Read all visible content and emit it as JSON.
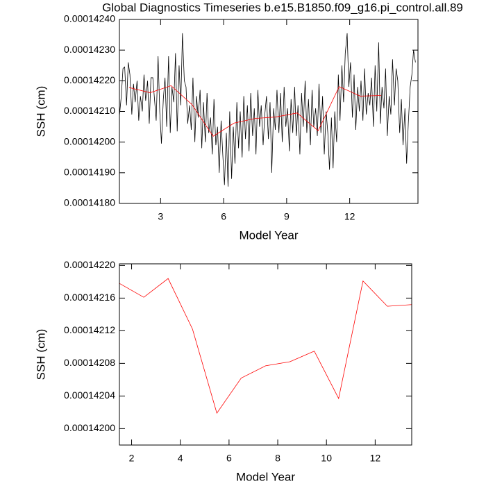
{
  "chart_data": [
    {
      "type": "line",
      "title": "Global Diagnostics Timeseries b.e15.B1850.f09_g16.pi_control.all.89",
      "x_label": "Model Year",
      "y_label": "SSH (cm)",
      "xlim": [
        1.04,
        15.25
      ],
      "xticks": [
        3,
        6,
        9,
        12
      ],
      "ylim": [
        0.0001418,
        0.0001424
      ],
      "yticks": [
        {
          "value": 0.0001418,
          "label": "0.00014180"
        },
        {
          "value": 0.0001419,
          "label": "0.00014190"
        },
        {
          "value": 0.000142,
          "label": "0.00014200"
        },
        {
          "value": 0.0001421,
          "label": "0.00014210"
        },
        {
          "value": 0.0001422,
          "label": "0.00014220"
        },
        {
          "value": 0.0001423,
          "label": "0.00014230"
        },
        {
          "value": 0.0001424,
          "label": "0.00014240"
        }
      ],
      "series": [
        {
          "color": "#000000",
          "x": [
            1.04,
            1.13,
            1.21,
            1.29,
            1.38,
            1.46,
            1.54,
            1.63,
            1.71,
            1.79,
            1.88,
            1.96,
            2.04,
            2.13,
            2.21,
            2.29,
            2.38,
            2.46,
            2.54,
            2.63,
            2.71,
            2.79,
            2.88,
            2.96,
            3.04,
            3.13,
            3.21,
            3.29,
            3.38,
            3.46,
            3.54,
            3.63,
            3.71,
            3.79,
            3.88,
            3.96,
            4.04,
            4.13,
            4.21,
            4.29,
            4.38,
            4.46,
            4.54,
            4.63,
            4.71,
            4.79,
            4.88,
            4.96,
            5.04,
            5.13,
            5.21,
            5.29,
            5.38,
            5.46,
            5.54,
            5.63,
            5.71,
            5.79,
            5.88,
            5.96,
            6.04,
            6.13,
            6.21,
            6.29,
            6.38,
            6.46,
            6.54,
            6.63,
            6.71,
            6.79,
            6.88,
            6.96,
            7.04,
            7.13,
            7.21,
            7.29,
            7.38,
            7.46,
            7.54,
            7.63,
            7.71,
            7.79,
            7.88,
            7.96,
            8.04,
            8.13,
            8.21,
            8.29,
            8.38,
            8.46,
            8.54,
            8.63,
            8.71,
            8.79,
            8.88,
            8.96,
            9.04,
            9.13,
            9.21,
            9.29,
            9.38,
            9.46,
            9.54,
            9.63,
            9.71,
            9.79,
            9.88,
            9.96,
            10.04,
            10.13,
            10.21,
            10.29,
            10.38,
            10.46,
            10.54,
            10.63,
            10.71,
            10.79,
            10.88,
            10.96,
            11.04,
            11.13,
            11.21,
            11.29,
            11.38,
            11.46,
            11.54,
            11.63,
            11.71,
            11.79,
            11.88,
            11.96,
            12.04,
            12.13,
            12.21,
            12.29,
            12.38,
            12.46,
            12.54,
            12.63,
            12.71,
            12.79,
            12.88,
            12.96,
            13.04,
            13.13,
            13.21,
            13.29,
            13.38,
            13.46,
            13.54,
            13.63,
            13.71,
            13.79,
            13.88,
            13.96,
            14.04,
            14.13,
            14.21,
            14.29,
            14.38,
            14.46,
            14.54,
            14.63,
            14.71,
            14.79,
            14.88,
            14.96,
            15.04,
            15.13
          ],
          "values": [
            0.000142085,
            0.00014215,
            0.00014224,
            0.000142245,
            0.00014212,
            0.00014226,
            0.00014222,
            0.00014209,
            0.00014219,
            0.00014213,
            0.0001422,
            0.00014207,
            0.00014215,
            0.0001421,
            0.00014222,
            0.000142135,
            0.0001422,
            0.00014206,
            0.00014221,
            0.00014221,
            0.00014214,
            0.00014207,
            0.00014228,
            0.0001421,
            0.000141995,
            0.00014214,
            0.00014221,
            0.00014205,
            0.00014228,
            0.00014203,
            0.00014218,
            0.00014213,
            0.00014229,
            0.000142035,
            0.00014225,
            0.00014212,
            0.000142355,
            0.0001422,
            0.00014218,
            0.00014206,
            0.00014212,
            0.00014204,
            0.00014221,
            0.000142,
            0.00014215,
            0.00014208,
            0.00014217,
            0.00014198,
            0.00014213,
            0.000142,
            0.00014216,
            0.00014203,
            0.00014208,
            0.00014196,
            0.00014214,
            0.00014199,
            0.00014205,
            0.0001419,
            0.00014207,
            0.00014196,
            0.00014186,
            0.00014203,
            0.000141855,
            0.0001421,
            0.00014188,
            0.00014205,
            0.00014193,
            0.00014213,
            0.00014198,
            0.0001421,
            0.00014195,
            0.00014215,
            0.00014201,
            0.00014212,
            0.00014197,
            0.00014216,
            0.00014202,
            0.00014211,
            0.00014196,
            0.00014217,
            0.00014205,
            0.00014212,
            0.00014199,
            0.00014209,
            0.00014215,
            0.00014201,
            0.00014213,
            0.0001419,
            0.00014211,
            0.00014204,
            0.00014217,
            0.00014203,
            0.00014216,
            0.000142,
            0.00014218,
            0.00014205,
            0.00014211,
            0.00014197,
            0.00014214,
            0.00014203,
            0.00014218,
            0.00014202,
            0.00014212,
            0.00014196,
            0.00014216,
            0.00014205,
            0.0001422,
            0.00014203,
            0.00014214,
            0.00014199,
            0.00014217,
            0.00014205,
            0.00014211,
            0.00014202,
            0.00014219,
            0.00014203,
            0.00014215,
            0.00014196,
            0.0001421,
            0.00014203,
            0.00014191,
            0.00014208,
            0.000141915,
            0.0001421,
            0.000142,
            0.00014222,
            0.00014207,
            0.00014225,
            0.00014213,
            0.00014229,
            0.000142355,
            0.00014218,
            0.00014226,
            0.00014208,
            0.00014222,
            0.00014204,
            0.00014218,
            0.0001421,
            0.0001422,
            0.00014207,
            0.00014224,
            0.00014209,
            0.00014216,
            0.00014212,
            0.00014221,
            0.00014205,
            0.00014225,
            0.0001421,
            0.000142325,
            0.00014206,
            0.00014218,
            0.00014211,
            0.00014224,
            0.00014202,
            0.00014215,
            0.00014209,
            0.00014227,
            0.00014212,
            0.00014224,
            0.0001422,
            0.00014203,
            0.00014214,
            0.00014199,
            0.00014211,
            0.00014193,
            0.00014206,
            0.00014218,
            0.00014222,
            0.0001423,
            0.00014226
          ]
        },
        {
          "color": "#ff0000",
          "x": [
            1.5,
            2.5,
            3.5,
            4.5,
            5.5,
            6.5,
            7.5,
            8.5,
            9.5,
            10.5,
            11.5,
            12.5,
            13.5
          ],
          "values": [
            0.000142178,
            0.000142161,
            0.000142184,
            0.000142122,
            0.000142019,
            0.000142062,
            0.000142077,
            0.000142082,
            0.000142095,
            0.000142037,
            0.000142181,
            0.00014215,
            0.000142152
          ]
        }
      ]
    },
    {
      "type": "line",
      "x_label": "Model Year",
      "y_label": "SSH (cm)",
      "xlim": [
        1.5,
        13.5
      ],
      "xticks": [
        2,
        4,
        6,
        8,
        10,
        12
      ],
      "ylim": [
        0.0001419799,
        0.000142202
      ],
      "yticks": [
        {
          "value": 0.000142,
          "label": "0.00014200"
        },
        {
          "value": 0.00014204,
          "label": "0.00014204"
        },
        {
          "value": 0.00014208,
          "label": "0.00014208"
        },
        {
          "value": 0.00014212,
          "label": "0.00014212"
        },
        {
          "value": 0.00014216,
          "label": "0.00014216"
        },
        {
          "value": 0.0001422,
          "label": "0.00014220"
        }
      ],
      "x": [
        1.5,
        2.5,
        3.5,
        4.5,
        5.5,
        6.5,
        7.5,
        8.5,
        9.5,
        10.5,
        11.5,
        12.5,
        13.5
      ],
      "series": [
        {
          "color": "#ff0000",
          "values": [
            0.000142178,
            0.000142161,
            0.000142184,
            0.000142122,
            0.000142019,
            0.000142062,
            0.000142077,
            0.000142082,
            0.000142095,
            0.000142037,
            0.000142181,
            0.00014215,
            0.000142152
          ]
        }
      ]
    }
  ]
}
